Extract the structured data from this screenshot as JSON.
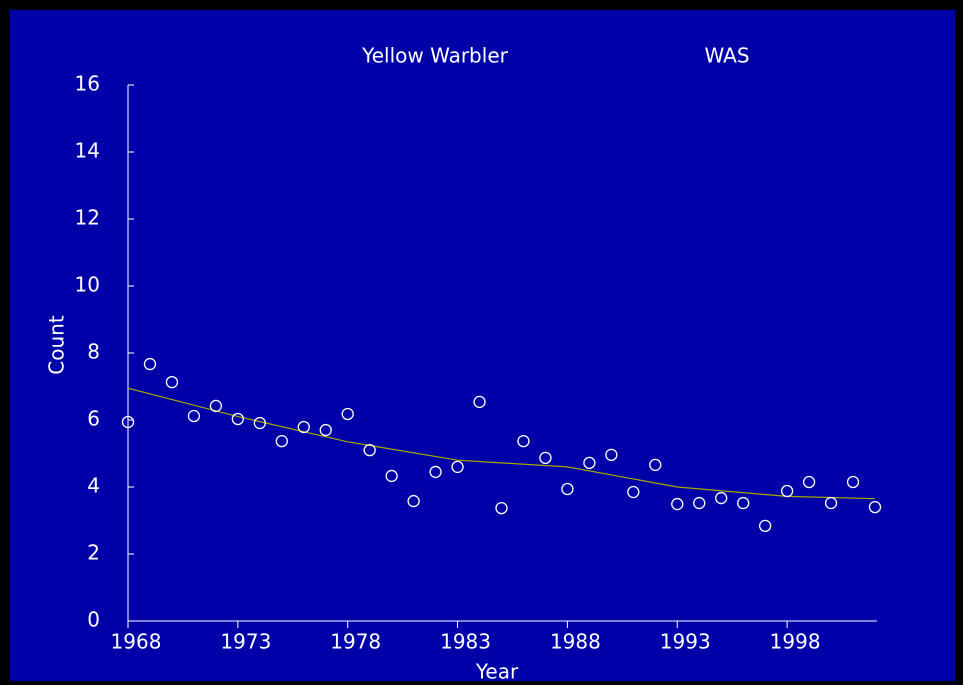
{
  "chart_data": {
    "type": "scatter",
    "title": "Yellow  Warbler",
    "subtitle": "WAS",
    "x_label": "Year",
    "y_label": "Count",
    "x": [
      1968,
      1969,
      1970,
      1971,
      1972,
      1973,
      1974,
      1975,
      1976,
      1977,
      1978,
      1979,
      1980,
      1981,
      1982,
      1983,
      1984,
      1985,
      1986,
      1987,
      1988,
      1989,
      1990,
      1991,
      1992,
      1993,
      1994,
      1995,
      1996,
      1997,
      1998,
      1999,
      2000,
      2001,
      2002
    ],
    "series": [
      {
        "color": "#ffffff",
        "values": [
          5.94,
          7.67,
          7.13,
          6.12,
          6.42,
          6.03,
          5.91,
          5.37,
          5.79,
          5.7,
          6.18,
          5.1,
          4.33,
          3.58,
          4.45,
          4.6,
          6.54,
          3.37,
          5.37,
          4.87,
          3.94,
          4.72,
          4.96,
          3.85,
          4.66,
          3.49,
          3.52,
          3.67,
          3.52,
          2.84,
          3.88,
          4.15,
          3.52,
          4.15,
          3.4
        ]
      }
    ],
    "trend": {
      "color": "#a8a800",
      "x": [
        1968,
        1973,
        1978,
        1983,
        1988,
        1993,
        1998,
        2002
      ],
      "values": [
        6.95,
        6.1,
        5.35,
        4.8,
        4.6,
        4.0,
        3.72,
        3.65
      ]
    },
    "xlim": [
      1968,
      2002
    ],
    "ylim": [
      0,
      16
    ],
    "xticks": [
      1968,
      1973,
      1978,
      1983,
      1988,
      1993,
      1998
    ],
    "yticks": [
      0,
      2,
      4,
      6,
      8,
      10,
      12,
      14,
      16
    ]
  }
}
